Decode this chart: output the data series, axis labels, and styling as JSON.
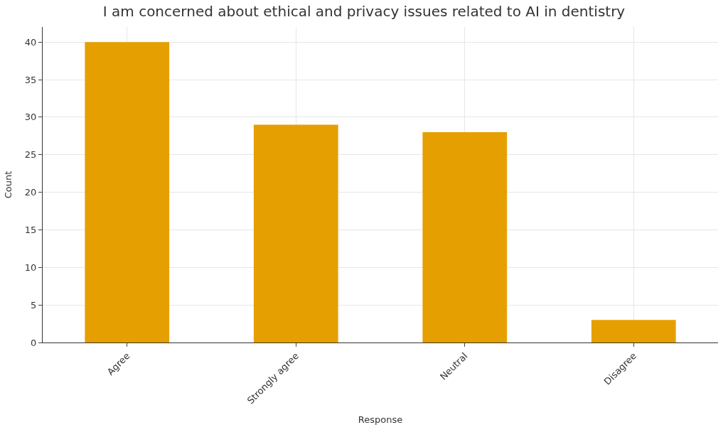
{
  "chart_data": {
    "type": "bar",
    "title": "I am concerned about ethical and privacy issues related to AI in dentistry",
    "xlabel": "Response",
    "ylabel": "Count",
    "categories": [
      "Agree",
      "Strongly agree",
      "Neutral",
      "Disagree"
    ],
    "values": [
      40,
      29,
      28,
      3
    ],
    "color": "#e69f00",
    "ylim": [
      0,
      42
    ],
    "yticks": [
      0,
      5,
      10,
      15,
      20,
      25,
      30,
      35,
      40
    ],
    "grid": true
  }
}
